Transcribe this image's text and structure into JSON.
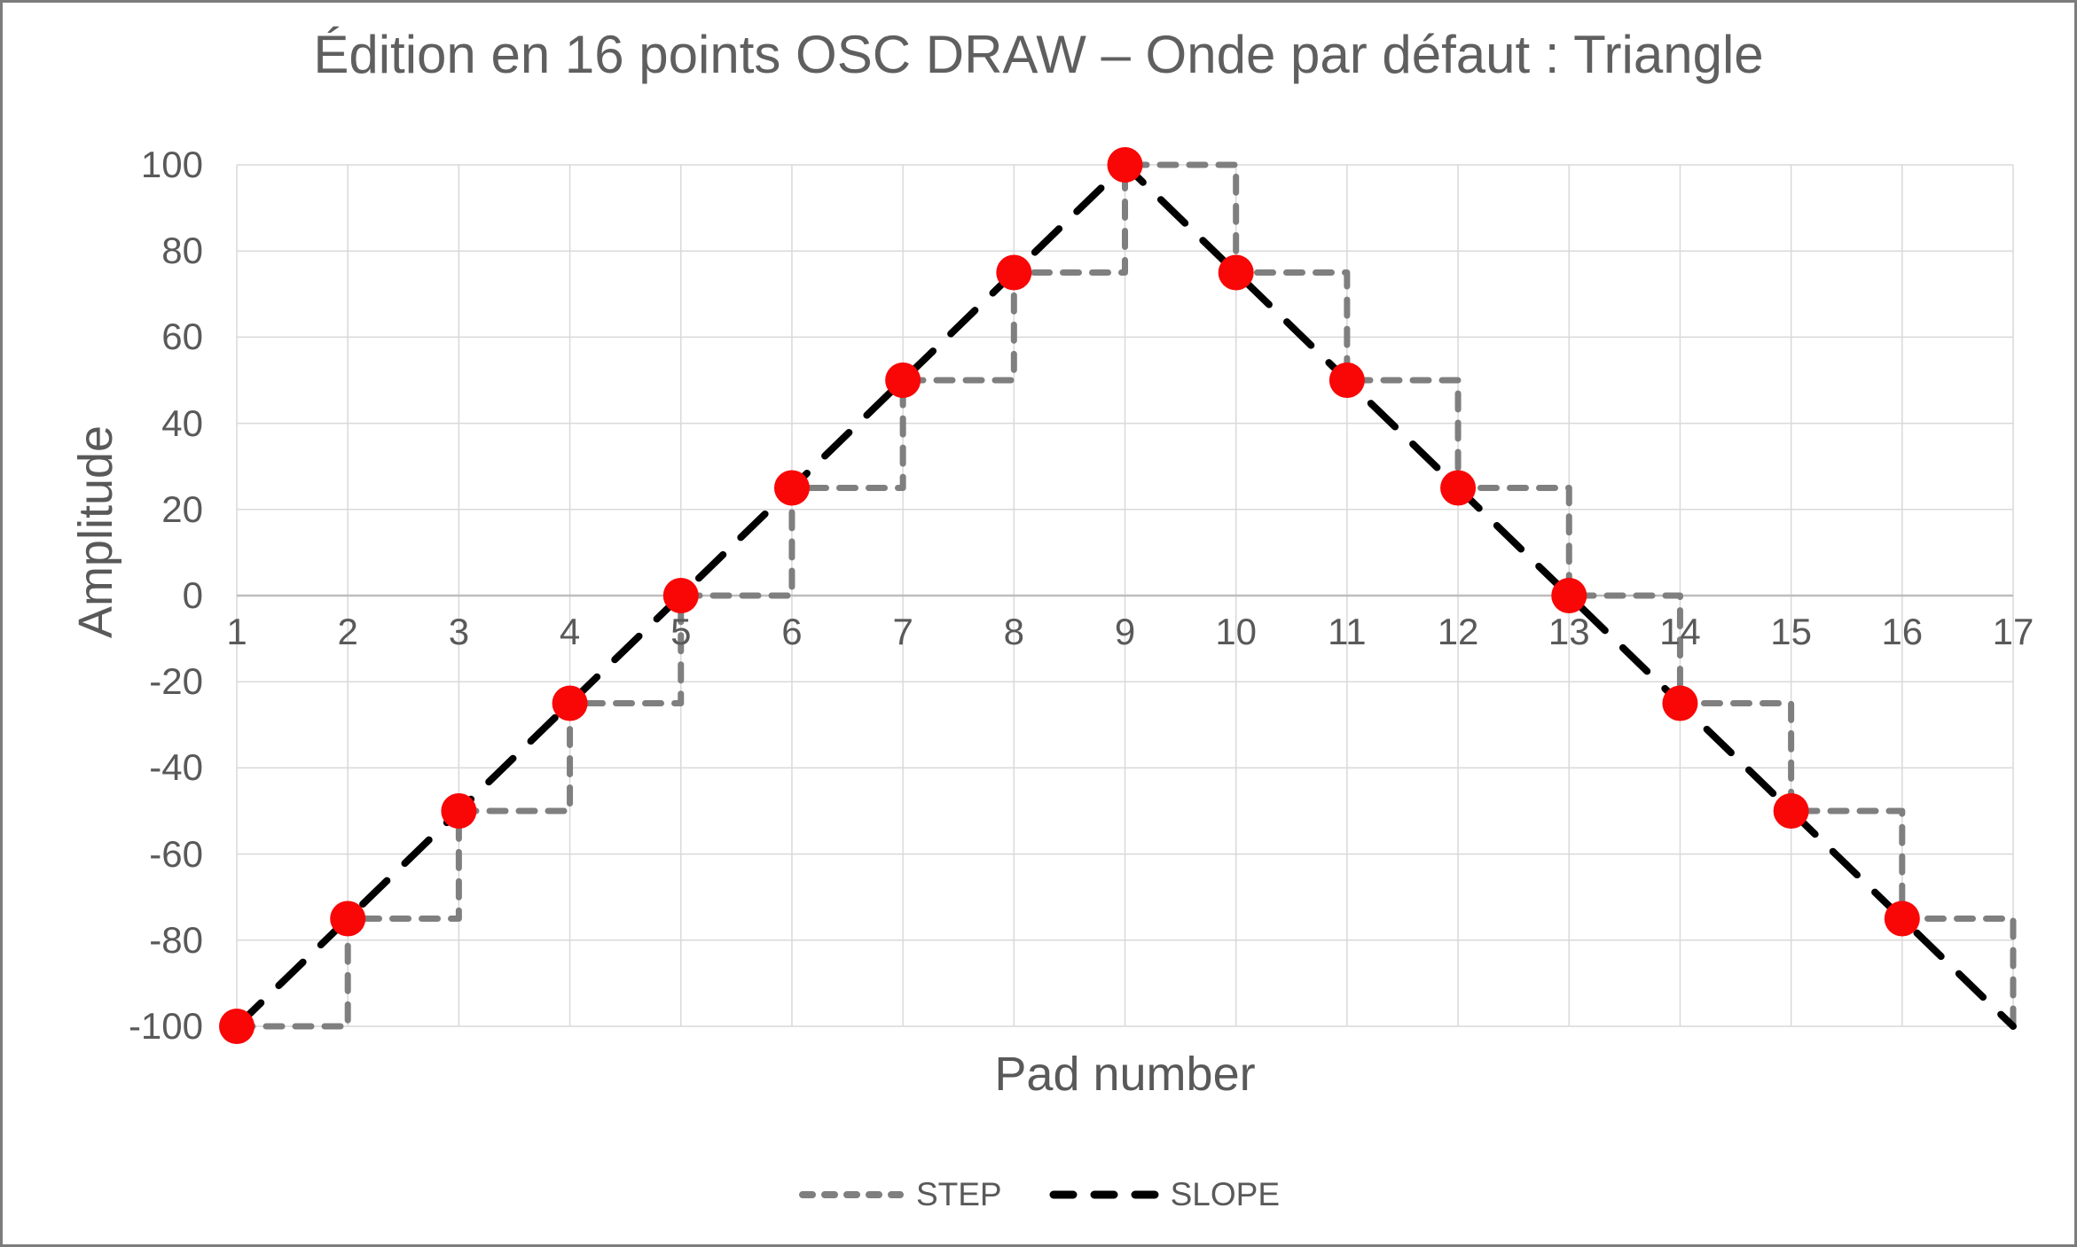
{
  "chart_data": {
    "type": "line",
    "title": "Édition en 16 points OSC DRAW – Onde par défaut : Triangle",
    "xlabel": "Pad number",
    "ylabel": "Amplitude",
    "x": [
      1,
      2,
      3,
      4,
      5,
      6,
      7,
      8,
      9,
      10,
      11,
      12,
      13,
      14,
      15,
      16,
      17
    ],
    "xlim": [
      1,
      17
    ],
    "ylim": [
      -100,
      100
    ],
    "yticks": [
      100,
      80,
      60,
      40,
      20,
      0,
      -20,
      -40,
      -60,
      -80,
      -100
    ],
    "grid": true,
    "axis_crosses_at_y": 0,
    "legend_position": "bottom-center",
    "series": [
      {
        "name": "STEP",
        "line_style": "step-after-dashed",
        "color": "#7f7f7f",
        "stroke_width": 7,
        "values": [
          -100,
          -75,
          -50,
          -25,
          0,
          25,
          50,
          75,
          100,
          75,
          50,
          25,
          0,
          -25,
          -50,
          -75,
          -100
        ]
      },
      {
        "name": "SLOPE",
        "line_style": "linear-long-dash",
        "color": "#000000",
        "stroke_width": 8,
        "values": [
          -100,
          -75,
          -50,
          -25,
          0,
          25,
          50,
          75,
          100,
          75,
          50,
          25,
          0,
          -25,
          -50,
          -75,
          -100
        ]
      }
    ],
    "markers": {
      "color": "#f90606",
      "radius": 20,
      "x": [
        1,
        2,
        3,
        4,
        5,
        6,
        7,
        8,
        9,
        10,
        11,
        12,
        13,
        14,
        15,
        16
      ],
      "values": [
        -100,
        -75,
        -50,
        -25,
        0,
        25,
        50,
        75,
        100,
        75,
        50,
        25,
        0,
        -25,
        -50,
        -75
      ]
    }
  },
  "colors": {
    "background": "#ffffff",
    "frame_border": "#7c7c7c",
    "gridline": "#d9d9d9",
    "axis_line": "#bdbdbd",
    "text": "#595959",
    "title_text": "#5f5f5f"
  }
}
